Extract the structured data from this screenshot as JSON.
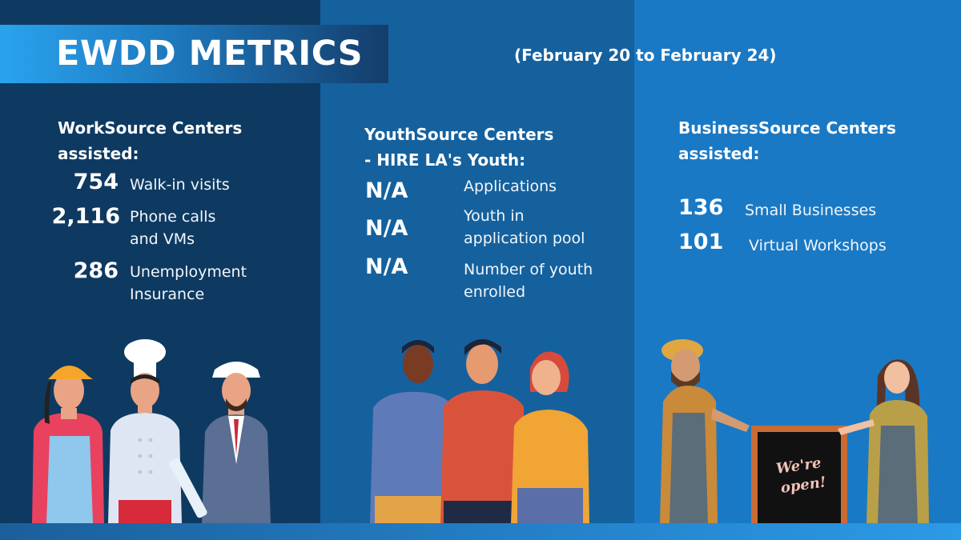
{
  "title": "EWDD METRICS",
  "date_range": "(February 20 to February 24)",
  "worksource": {
    "heading_line1": "WorkSource Centers",
    "heading_line2": "assisted:",
    "metrics": [
      {
        "value": "754",
        "label_line1": "Walk-in visits",
        "label_line2": ""
      },
      {
        "value": "2,116",
        "label_line1": "Phone calls",
        "label_line2": "and VMs"
      },
      {
        "value": "286",
        "label_line1": "Unemployment",
        "label_line2": "Insurance"
      }
    ]
  },
  "youthsource": {
    "heading_line1": "YouthSource Centers",
    "heading_line2": "- HIRE LA's Youth:",
    "metrics": [
      {
        "value": "N/A",
        "label_line1": "Applications",
        "label_line2": ""
      },
      {
        "value": "N/A",
        "label_line1": "Youth in",
        "label_line2": "application pool"
      },
      {
        "value": "N/A",
        "label_line1": "Number of youth",
        "label_line2": "enrolled"
      }
    ]
  },
  "businesssource": {
    "heading_line1": "BusinessSource Centers",
    "heading_line2": "assisted:",
    "metrics": [
      {
        "value": "136",
        "label_line1": "Small Businesses"
      },
      {
        "value": "101",
        "label_line1": "Virtual Workshops"
      }
    ]
  },
  "sign_text_line1": "We're",
  "sign_text_line2": "open!",
  "colors": {
    "panel_left": "#0e3a62",
    "panel_middle": "#15619e",
    "panel_right": "#1a79c4",
    "banner_accent": "#2aa3ee"
  }
}
